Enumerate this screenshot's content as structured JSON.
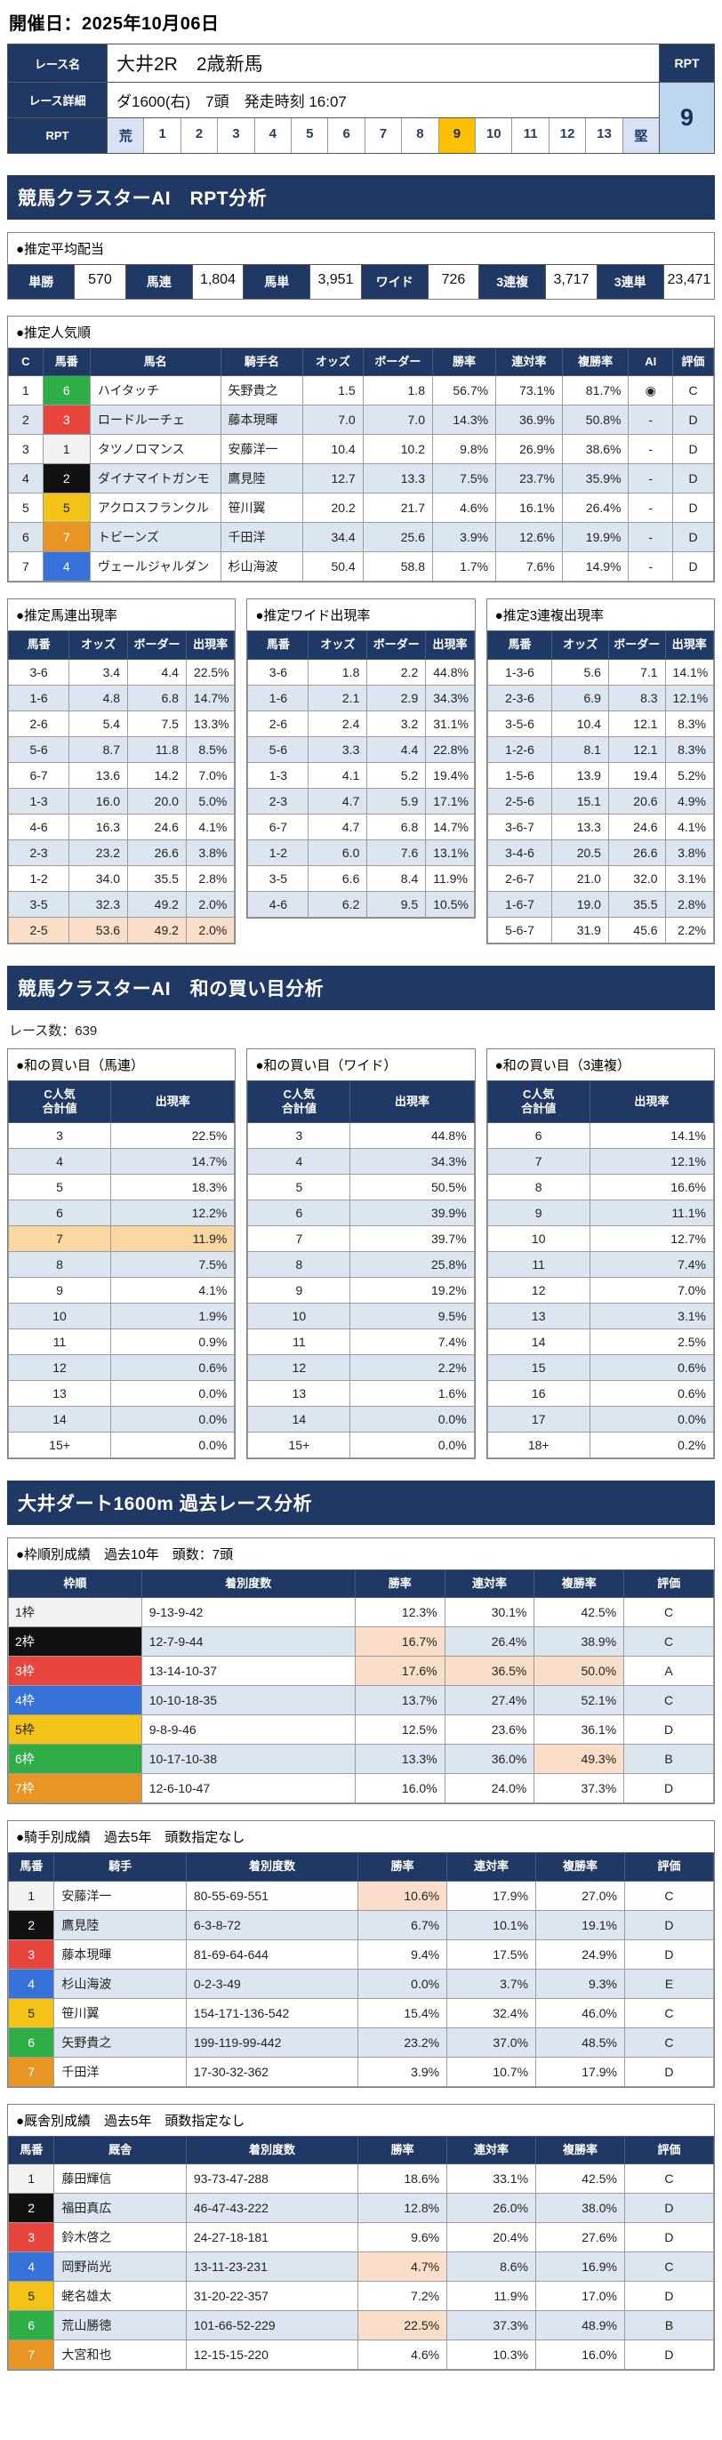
{
  "colors": {
    "navy_header": "#1F3864",
    "row_alt_blue": "#DCE6F1",
    "highlight_salmon": "#FBDEC9",
    "highlight_orange_row": "#FAD7A0",
    "rpt_selected_amber": "#FFC000",
    "rpt_value_bg": "#BDD7EE",
    "horse_1": "#F2F2F2",
    "horse_2": "#111111",
    "horse_3": "#E8453C",
    "horse_4": "#3672D9",
    "horse_5": "#F3C318",
    "horse_6": "#2FAD46",
    "horse_7": "#E89523"
  },
  "page": {
    "date_label": "開催日：2025年10月06日"
  },
  "race_info": {
    "name_label": "レース名",
    "name_value": "大井2R　2歳新馬",
    "detail_label": "レース詳細",
    "detail_value": "ダ1600(右)　7頭　発走時刻 16:07",
    "rpt_col_label": "RPT",
    "rpt_row_label": "RPT",
    "rpt_value": "9",
    "rpt_scale": [
      {
        "text": "荒",
        "cls": "edge"
      },
      {
        "text": "1"
      },
      {
        "text": "2"
      },
      {
        "text": "3"
      },
      {
        "text": "4"
      },
      {
        "text": "5"
      },
      {
        "text": "6"
      },
      {
        "text": "7"
      },
      {
        "text": "8"
      },
      {
        "text": "9",
        "cls": "selected"
      },
      {
        "text": "10"
      },
      {
        "text": "11"
      },
      {
        "text": "12"
      },
      {
        "text": "13"
      },
      {
        "text": "堅",
        "cls": "edge"
      }
    ]
  },
  "sections": {
    "rpt_analysis": "競馬クラスターAI　RPT分析",
    "wa_kaime": "競馬クラスターAI　和の買い目分析",
    "past_race": "大井ダート1600m 過去レース分析"
  },
  "payout": {
    "title": "●推定平均配当",
    "items": [
      {
        "label": "単勝",
        "value": "570"
      },
      {
        "label": "馬連",
        "value": "1,804"
      },
      {
        "label": "馬単",
        "value": "3,951"
      },
      {
        "label": "ワイド",
        "value": "726"
      },
      {
        "label": "3連複",
        "value": "3,717"
      },
      {
        "label": "3連単",
        "value": "23,471"
      }
    ]
  },
  "popularity": {
    "title": "●推定人気順",
    "table": {
      "headers": [
        "C",
        "馬番",
        "馬名",
        "騎手名",
        "オッズ",
        "ボーダー",
        "勝率",
        "連対率",
        "複勝率",
        "AI",
        "評価"
      ],
      "widths": [
        "4.5%",
        "6.5%",
        "19.5%",
        "12%",
        "8.5%",
        "10%",
        "9%",
        "9.5%",
        "9.5%",
        "6%",
        "5.5%"
      ],
      "aligns": [
        "center",
        "center",
        "left",
        "left",
        "right",
        "right",
        "right",
        "right",
        "right",
        "center",
        "center"
      ],
      "rows": [
        [
          "1",
          {
            "text": "6",
            "cls": "chip n6"
          },
          "ハイタッチ",
          "矢野貴之",
          "1.5",
          "1.8",
          "56.7%",
          "73.1%",
          "81.7%",
          "◉",
          "C"
        ],
        [
          "2",
          {
            "text": "3",
            "cls": "chip n3"
          },
          "ロードルーチェ",
          "藤本現暉",
          "7.0",
          "7.0",
          "14.3%",
          "36.9%",
          "50.8%",
          "-",
          "D"
        ],
        [
          "3",
          {
            "text": "1",
            "cls": "chip n1"
          },
          "タツノロマンス",
          "安藤洋一",
          "10.4",
          "10.2",
          "9.8%",
          "26.9%",
          "38.6%",
          "-",
          "D"
        ],
        [
          "4",
          {
            "text": "2",
            "cls": "chip n2"
          },
          "ダイナマイトガンモ",
          "鷹見陸",
          "12.7",
          "13.3",
          "7.5%",
          "23.7%",
          "35.9%",
          "-",
          "D"
        ],
        [
          "5",
          {
            "text": "5",
            "cls": "chip n5"
          },
          "アクロスフランクル",
          "笹川翼",
          "20.2",
          "21.7",
          "4.6%",
          "16.1%",
          "26.4%",
          "-",
          "D"
        ],
        [
          "6",
          {
            "text": "7",
            "cls": "chip n7"
          },
          "トビーンズ",
          "千田洋",
          "34.4",
          "25.6",
          "3.9%",
          "12.6%",
          "19.9%",
          "-",
          "D"
        ],
        [
          "7",
          {
            "text": "4",
            "cls": "chip n4"
          },
          "ヴェールジャルダン",
          "杉山海波",
          "50.4",
          "58.8",
          "1.7%",
          "7.6%",
          "14.9%",
          "-",
          "D"
        ]
      ]
    }
  },
  "umaren": {
    "title": "●推定馬連出現率",
    "table": {
      "headers": [
        "馬番",
        "オッズ",
        "ボーダー",
        "出現率"
      ],
      "widths": [
        "27%",
        "26%",
        "26%",
        "21%"
      ],
      "aligns": [
        "center",
        "right",
        "right",
        "right"
      ],
      "row_classes": {
        "10": "row-salmon"
      },
      "rows": [
        [
          "3-6",
          "3.4",
          "4.4",
          "22.5%"
        ],
        [
          "1-6",
          "4.8",
          "6.8",
          "14.7%"
        ],
        [
          "2-6",
          "5.4",
          "7.5",
          "13.3%"
        ],
        [
          "5-6",
          "8.7",
          "11.8",
          "8.5%"
        ],
        [
          "6-7",
          "13.6",
          "14.2",
          "7.0%"
        ],
        [
          "1-3",
          "16.0",
          "20.0",
          "5.0%"
        ],
        [
          "4-6",
          "16.3",
          "24.6",
          "4.1%"
        ],
        [
          "2-3",
          "23.2",
          "26.6",
          "3.8%"
        ],
        [
          "1-2",
          "34.0",
          "35.5",
          "2.8%"
        ],
        [
          "3-5",
          "32.3",
          "49.2",
          "2.0%"
        ],
        [
          "2-5",
          "53.6",
          "49.2",
          "2.0%"
        ]
      ]
    }
  },
  "wide": {
    "title": "●推定ワイド出現率",
    "table": {
      "headers": [
        "馬番",
        "オッズ",
        "ボーダー",
        "出現率"
      ],
      "widths": [
        "27%",
        "26%",
        "26%",
        "21%"
      ],
      "aligns": [
        "center",
        "right",
        "right",
        "right"
      ],
      "rows": [
        [
          "3-6",
          "1.8",
          "2.2",
          "44.8%"
        ],
        [
          "1-6",
          "2.1",
          "2.9",
          "34.3%"
        ],
        [
          "2-6",
          "2.4",
          "3.2",
          "31.1%"
        ],
        [
          "5-6",
          "3.3",
          "4.4",
          "22.8%"
        ],
        [
          "1-3",
          "4.1",
          "5.2",
          "19.4%"
        ],
        [
          "2-3",
          "4.7",
          "5.9",
          "17.1%"
        ],
        [
          "6-7",
          "4.7",
          "6.8",
          "14.7%"
        ],
        [
          "1-2",
          "6.0",
          "7.6",
          "13.1%"
        ],
        [
          "3-5",
          "6.6",
          "8.4",
          "11.9%"
        ],
        [
          "4-6",
          "6.2",
          "9.5",
          "10.5%"
        ]
      ]
    }
  },
  "sanrenpuku": {
    "title": "●推定3連複出現率",
    "table": {
      "headers": [
        "馬番",
        "オッズ",
        "ボーダー",
        "出現率"
      ],
      "widths": [
        "29%",
        "25%",
        "25%",
        "21%"
      ],
      "aligns": [
        "center",
        "right",
        "right",
        "right"
      ],
      "rows": [
        [
          "1-3-6",
          "5.6",
          "7.1",
          "14.1%"
        ],
        [
          "2-3-6",
          "6.9",
          "8.3",
          "12.1%"
        ],
        [
          "3-5-6",
          "10.4",
          "12.1",
          "8.3%"
        ],
        [
          "1-2-6",
          "8.1",
          "12.1",
          "8.3%"
        ],
        [
          "1-5-6",
          "13.9",
          "19.4",
          "5.2%"
        ],
        [
          "2-5-6",
          "15.1",
          "20.6",
          "4.9%"
        ],
        [
          "3-6-7",
          "13.3",
          "24.6",
          "4.1%"
        ],
        [
          "3-4-6",
          "20.5",
          "26.6",
          "3.8%"
        ],
        [
          "2-6-7",
          "21.0",
          "32.0",
          "3.1%"
        ],
        [
          "1-6-7",
          "19.0",
          "35.5",
          "2.8%"
        ],
        [
          "5-6-7",
          "31.9",
          "45.6",
          "2.2%"
        ]
      ]
    }
  },
  "wa_kaime": {
    "race_count_label": "レース数：639",
    "umaren": {
      "title": "●和の買い目（馬連）",
      "table": {
        "headers": [
          "C人気\n合計値",
          "出現率"
        ],
        "widths": [
          "45%",
          "55%"
        ],
        "aligns": [
          "center",
          "right"
        ],
        "row_classes": {
          "4": "row-orange"
        },
        "rows": [
          [
            "3",
            "22.5%"
          ],
          [
            "4",
            "14.7%"
          ],
          [
            "5",
            "18.3%"
          ],
          [
            "6",
            "12.2%"
          ],
          [
            "7",
            "11.9%"
          ],
          [
            "8",
            "7.5%"
          ],
          [
            "9",
            "4.1%"
          ],
          [
            "10",
            "1.9%"
          ],
          [
            "11",
            "0.9%"
          ],
          [
            "12",
            "0.6%"
          ],
          [
            "13",
            "0.0%"
          ],
          [
            "14",
            "0.0%"
          ],
          [
            "15+",
            "0.0%"
          ]
        ]
      }
    },
    "wide": {
      "title": "●和の買い目（ワイド）",
      "table": {
        "headers": [
          "C人気\n合計値",
          "出現率"
        ],
        "widths": [
          "45%",
          "55%"
        ],
        "aligns": [
          "center",
          "right"
        ],
        "rows": [
          [
            "3",
            "44.8%"
          ],
          [
            "4",
            "34.3%"
          ],
          [
            "5",
            "50.5%"
          ],
          [
            "6",
            "39.9%"
          ],
          [
            "7",
            "39.7%"
          ],
          [
            "8",
            "25.8%"
          ],
          [
            "9",
            "19.2%"
          ],
          [
            "10",
            "9.5%"
          ],
          [
            "11",
            "7.4%"
          ],
          [
            "12",
            "2.2%"
          ],
          [
            "13",
            "1.6%"
          ],
          [
            "14",
            "0.0%"
          ],
          [
            "15+",
            "0.0%"
          ]
        ]
      }
    },
    "sanrenpuku": {
      "title": "●和の買い目（3連複）",
      "table": {
        "headers": [
          "C人気\n合計値",
          "出現率"
        ],
        "widths": [
          "45%",
          "55%"
        ],
        "aligns": [
          "center",
          "right"
        ],
        "rows": [
          [
            "6",
            "14.1%"
          ],
          [
            "7",
            "12.1%"
          ],
          [
            "8",
            "16.6%"
          ],
          [
            "9",
            "11.1%"
          ],
          [
            "10",
            "12.7%"
          ],
          [
            "11",
            "7.4%"
          ],
          [
            "12",
            "7.0%"
          ],
          [
            "13",
            "3.1%"
          ],
          [
            "14",
            "2.5%"
          ],
          [
            "15",
            "0.6%"
          ],
          [
            "16",
            "0.6%"
          ],
          [
            "17",
            "0.0%"
          ],
          [
            "18+",
            "0.2%"
          ]
        ]
      }
    }
  },
  "past": {
    "waku": {
      "title": "●枠順別成績　過去10年　頭数：7頭",
      "table": {
        "headers": [
          "枠順",
          "着別度数",
          "勝率",
          "連対率",
          "複勝率",
          "評価"
        ],
        "widths": [
          "19%",
          "31%",
          "12.5%",
          "12.5%",
          "12.5%",
          "12.5%"
        ],
        "aligns": [
          "left",
          "left",
          "right",
          "right",
          "right",
          "center"
        ],
        "rows": [
          [
            {
              "text": "1枠",
              "cls": "waku n1"
            },
            "9-13-9-42",
            "12.3%",
            "30.1%",
            "42.5%",
            "C"
          ],
          [
            {
              "text": "2枠",
              "cls": "waku n2"
            },
            "12-7-9-44",
            {
              "text": "16.7%",
              "cls": "hl"
            },
            "26.4%",
            "38.9%",
            "C"
          ],
          [
            {
              "text": "3枠",
              "cls": "waku n3"
            },
            "13-14-10-37",
            {
              "text": "17.6%",
              "cls": "hl"
            },
            {
              "text": "36.5%",
              "cls": "hl"
            },
            {
              "text": "50.0%",
              "cls": "hl"
            },
            "A"
          ],
          [
            {
              "text": "4枠",
              "cls": "waku n4"
            },
            "10-10-18-35",
            "13.7%",
            "27.4%",
            "52.1%",
            "C"
          ],
          [
            {
              "text": "5枠",
              "cls": "waku n5"
            },
            "9-8-9-46",
            "12.5%",
            "23.6%",
            "36.1%",
            "D"
          ],
          [
            {
              "text": "6枠",
              "cls": "waku n6"
            },
            "10-17-10-38",
            "13.3%",
            "36.0%",
            {
              "text": "49.3%",
              "cls": "hl"
            },
            "B"
          ],
          [
            {
              "text": "7枠",
              "cls": "waku n7"
            },
            "12-6-10-47",
            "16.0%",
            "24.0%",
            "37.3%",
            "D"
          ]
        ]
      }
    },
    "jockey": {
      "title": "●騎手別成績　過去5年　頭数指定なし",
      "table": {
        "headers": [
          "馬番",
          "騎手",
          "着別度数",
          "勝率",
          "連対率",
          "複勝率",
          "評価"
        ],
        "widths": [
          "6%",
          "19%",
          "25%",
          "12.5%",
          "12.5%",
          "12.5%",
          "12.5%"
        ],
        "aligns": [
          "center",
          "left",
          "left",
          "right",
          "right",
          "right",
          "center"
        ],
        "rows": [
          [
            {
              "text": "1",
              "cls": "chip n1"
            },
            "安藤洋一",
            "80-55-69-551",
            {
              "text": "10.6%",
              "cls": "hl"
            },
            "17.9%",
            "27.0%",
            "C"
          ],
          [
            {
              "text": "2",
              "cls": "chip n2"
            },
            "鷹見陸",
            "6-3-8-72",
            "6.7%",
            "10.1%",
            "19.1%",
            "D"
          ],
          [
            {
              "text": "3",
              "cls": "chip n3"
            },
            "藤本現暉",
            "81-69-64-644",
            "9.4%",
            "17.5%",
            "24.9%",
            "D"
          ],
          [
            {
              "text": "4",
              "cls": "chip n4"
            },
            "杉山海波",
            "0-2-3-49",
            "0.0%",
            "3.7%",
            "9.3%",
            "E"
          ],
          [
            {
              "text": "5",
              "cls": "chip n5"
            },
            "笹川翼",
            "154-171-136-542",
            "15.4%",
            "32.4%",
            "46.0%",
            "C"
          ],
          [
            {
              "text": "6",
              "cls": "chip n6"
            },
            "矢野貴之",
            "199-119-99-442",
            "23.2%",
            "37.0%",
            "48.5%",
            "C"
          ],
          [
            {
              "text": "7",
              "cls": "chip n7"
            },
            "千田洋",
            "17-30-32-362",
            "3.9%",
            "10.7%",
            "17.9%",
            "D"
          ]
        ]
      }
    },
    "stable": {
      "title": "●厩舎別成績　過去5年　頭数指定なし",
      "table": {
        "headers": [
          "馬番",
          "厩舎",
          "着別度数",
          "勝率",
          "連対率",
          "複勝率",
          "評価"
        ],
        "widths": [
          "6%",
          "19%",
          "25%",
          "12.5%",
          "12.5%",
          "12.5%",
          "12.5%"
        ],
        "aligns": [
          "center",
          "left",
          "left",
          "right",
          "right",
          "right",
          "center"
        ],
        "rows": [
          [
            {
              "text": "1",
              "cls": "chip n1"
            },
            "藤田輝信",
            "93-73-47-288",
            "18.6%",
            "33.1%",
            "42.5%",
            "C"
          ],
          [
            {
              "text": "2",
              "cls": "chip n2"
            },
            "福田真広",
            "46-47-43-222",
            "12.8%",
            "26.0%",
            "38.0%",
            "D"
          ],
          [
            {
              "text": "3",
              "cls": "chip n3"
            },
            "鈴木啓之",
            "24-27-18-181",
            "9.6%",
            "20.4%",
            "27.6%",
            "D"
          ],
          [
            {
              "text": "4",
              "cls": "chip n4"
            },
            "岡野尚光",
            "13-11-23-231",
            {
              "text": "4.7%",
              "cls": "hl"
            },
            "8.6%",
            "16.9%",
            "C"
          ],
          [
            {
              "text": "5",
              "cls": "chip n5"
            },
            "蛯名雄太",
            "31-20-22-357",
            "7.2%",
            "11.9%",
            "17.0%",
            "D"
          ],
          [
            {
              "text": "6",
              "cls": "chip n6"
            },
            "荒山勝徳",
            "101-66-52-229",
            {
              "text": "22.5%",
              "cls": "hl"
            },
            "37.3%",
            "48.9%",
            "B"
          ],
          [
            {
              "text": "7",
              "cls": "chip n7"
            },
            "大宮和也",
            "12-15-15-220",
            "4.6%",
            "10.3%",
            "16.0%",
            "D"
          ]
        ]
      }
    }
  }
}
